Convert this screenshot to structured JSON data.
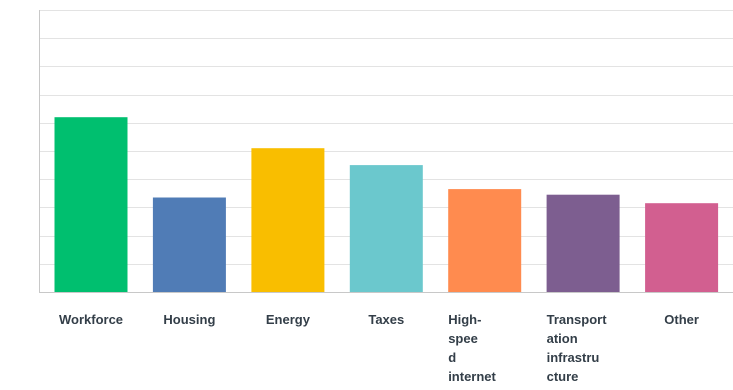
{
  "chart_data": {
    "type": "bar",
    "categories": [
      "Workforce",
      "Housing",
      "Energy",
      "Taxes",
      "High-speed internet",
      "Transportation infrastructure",
      "Other"
    ],
    "category_label_lines": [
      [
        "Workforce"
      ],
      [
        "Housing"
      ],
      [
        "Energy"
      ],
      [
        "Taxes"
      ],
      [
        "High-",
        "spee",
        "d",
        "internet"
      ],
      [
        "Transport",
        "ation",
        "infrastru",
        "cture"
      ],
      [
        "Other"
      ]
    ],
    "values": [
      62,
      33.5,
      51,
      45,
      36.5,
      34.5,
      31.5
    ],
    "colors": [
      "#00BF6F",
      "#507CB6",
      "#F9BE00",
      "#6BC8CD",
      "#FF8B4F",
      "#7D5E90",
      "#D25F90"
    ],
    "ylim": [
      0,
      100
    ],
    "grid": true,
    "gridline_color": "#e3e3e3",
    "axis_color": "#c8c8c8",
    "label_color": "#333e48",
    "title": "",
    "xlabel": "",
    "ylabel": ""
  }
}
